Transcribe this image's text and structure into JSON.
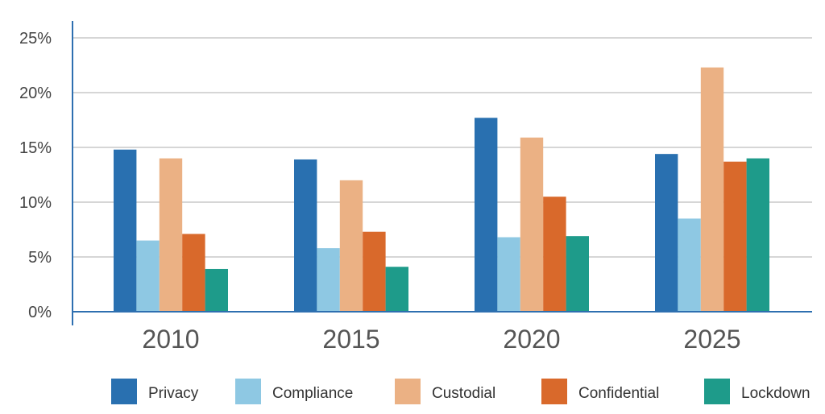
{
  "chart_data": {
    "type": "bar",
    "title": "",
    "xlabel": "",
    "ylabel": "",
    "categories": [
      "2010",
      "2015",
      "2020",
      "2025"
    ],
    "series": [
      {
        "name": "Privacy",
        "color": "#2970b0",
        "values": [
          14.8,
          13.9,
          17.7,
          14.4
        ]
      },
      {
        "name": "Compliance",
        "color": "#8ec8e3",
        "values": [
          6.5,
          5.8,
          6.8,
          8.5
        ]
      },
      {
        "name": "Custodial",
        "color": "#ebb184",
        "values": [
          14.0,
          12.0,
          15.9,
          22.3
        ]
      },
      {
        "name": "Confidential",
        "color": "#d9692b",
        "values": [
          7.1,
          7.3,
          10.5,
          13.7
        ]
      },
      {
        "name": "Lockdown",
        "color": "#1e9b8a",
        "values": [
          3.9,
          4.1,
          6.9,
          14.0
        ]
      }
    ],
    "ylim": [
      0,
      25
    ],
    "yticks": [
      "0%",
      "5%",
      "10%",
      "15%",
      "20%",
      "25%"
    ],
    "ytick_values": [
      0,
      5,
      10,
      15,
      20,
      25
    ],
    "grid": true,
    "legend_position": "bottom"
  }
}
